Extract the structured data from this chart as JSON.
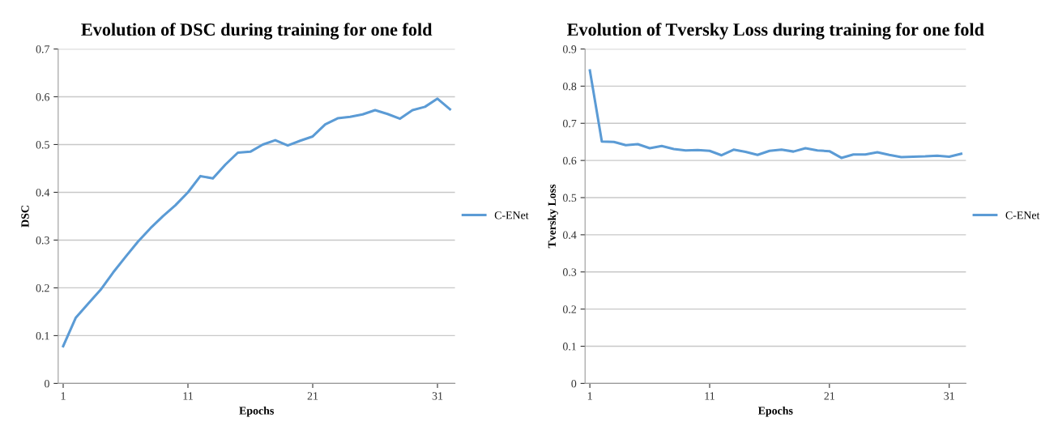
{
  "chart_data": [
    {
      "type": "line",
      "title": "Evolution of DSC during training for one fold",
      "xlabel": "Epochs",
      "ylabel": "DSC",
      "categories": [
        "1",
        null,
        null,
        null,
        null,
        null,
        null,
        null,
        null,
        null,
        "11",
        null,
        null,
        null,
        null,
        null,
        null,
        null,
        null,
        null,
        "21",
        null,
        null,
        null,
        null,
        null,
        null,
        null,
        null,
        null,
        "31",
        null
      ],
      "series": [
        {
          "name": "C-ENet",
          "color": "#5b9bd5",
          "values": [
            0.078,
            0.137,
            0.167,
            0.196,
            0.232,
            0.265,
            0.297,
            0.325,
            0.35,
            0.373,
            0.4,
            0.434,
            0.429,
            0.458,
            0.483,
            0.485,
            0.5,
            0.509,
            0.498,
            0.508,
            0.517,
            0.542,
            0.555,
            0.558,
            0.563,
            0.572,
            0.564,
            0.554,
            0.572,
            0.579,
            0.596,
            0.574
          ]
        }
      ],
      "ylim": [
        0,
        0.7
      ],
      "yticks": [
        0,
        0.1,
        0.2,
        0.3,
        0.4,
        0.5,
        0.6,
        0.7
      ],
      "grid": "y",
      "legend": "right",
      "marker": "none",
      "line_style": "solid"
    },
    {
      "type": "line",
      "title": "Evolution of Tversky Loss during training for one fold",
      "xlabel": "Epochs",
      "ylabel": "Tversky Loss",
      "categories": [
        "1",
        null,
        null,
        null,
        null,
        null,
        null,
        null,
        null,
        null,
        "11",
        null,
        null,
        null,
        null,
        null,
        null,
        null,
        null,
        null,
        "21",
        null,
        null,
        null,
        null,
        null,
        null,
        null,
        null,
        null,
        "31",
        null
      ],
      "series": [
        {
          "name": "C-ENet",
          "color": "#5b9bd5",
          "values": [
            0.842,
            0.651,
            0.65,
            0.641,
            0.644,
            0.633,
            0.639,
            0.631,
            0.627,
            0.628,
            0.626,
            0.614,
            0.629,
            0.623,
            0.615,
            0.626,
            0.629,
            0.624,
            0.633,
            0.627,
            0.625,
            0.607,
            0.616,
            0.616,
            0.622,
            0.615,
            0.609,
            0.61,
            0.611,
            0.613,
            0.61,
            0.618
          ]
        }
      ],
      "ylim": [
        0,
        0.9
      ],
      "yticks": [
        0,
        0.1,
        0.2,
        0.3,
        0.4,
        0.5,
        0.6,
        0.7,
        0.8,
        0.9
      ],
      "grid": "y",
      "legend": "right",
      "marker": "none",
      "line_style": "solid"
    }
  ]
}
